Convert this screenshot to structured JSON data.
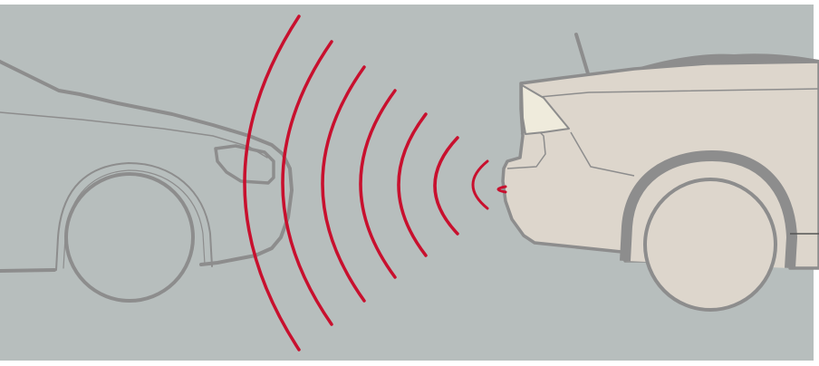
{
  "illustration": {
    "subject": "parking-sensor-diagram",
    "colors": {
      "background": "#b7bebd",
      "car_outline": "#8d8d8d",
      "rear_car_fill": "#ddd6cc",
      "rear_car_stroke": "#8d8d8d",
      "tire": "#8d8d8d",
      "taillight": "#efebdc",
      "signal_wave": "#c8102e"
    },
    "signal_wave_count": 8
  }
}
